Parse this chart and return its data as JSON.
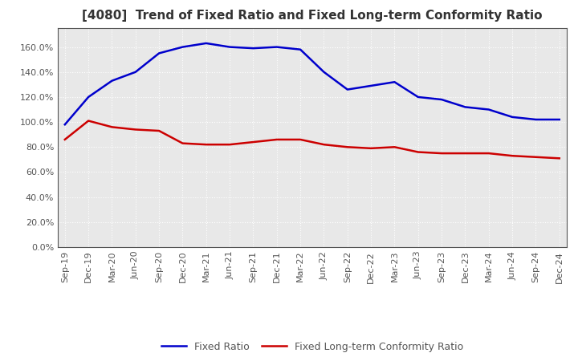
{
  "title": "[4080]  Trend of Fixed Ratio and Fixed Long-term Conformity Ratio",
  "x_labels": [
    "Sep-19",
    "Dec-19",
    "Mar-20",
    "Jun-20",
    "Sep-20",
    "Dec-20",
    "Mar-21",
    "Jun-21",
    "Sep-21",
    "Dec-21",
    "Mar-22",
    "Jun-22",
    "Sep-22",
    "Dec-22",
    "Mar-23",
    "Jun-23",
    "Sep-23",
    "Dec-23",
    "Mar-24",
    "Jun-24",
    "Sep-24",
    "Dec-24"
  ],
  "fixed_ratio": [
    98,
    120,
    133,
    140,
    155,
    160,
    163,
    160,
    159,
    160,
    158,
    140,
    126,
    129,
    132,
    120,
    118,
    112,
    110,
    104,
    102,
    102
  ],
  "fixed_lt_ratio": [
    86,
    101,
    96,
    94,
    93,
    83,
    82,
    82,
    84,
    86,
    86,
    82,
    80,
    79,
    80,
    76,
    75,
    75,
    75,
    73,
    72,
    71
  ],
  "ylim": [
    0,
    175
  ],
  "yticks": [
    0,
    20,
    40,
    60,
    80,
    100,
    120,
    140,
    160
  ],
  "line_color_blue": "#0000cc",
  "line_color_red": "#cc0000",
  "background_color": "#ffffff",
  "plot_bg_color": "#e8e8e8",
  "grid_color": "#ffffff",
  "legend_fixed_ratio": "Fixed Ratio",
  "legend_lt_ratio": "Fixed Long-term Conformity Ratio",
  "title_fontsize": 11,
  "axis_fontsize": 8,
  "legend_fontsize": 9,
  "title_color": "#333333",
  "tick_color": "#555555"
}
